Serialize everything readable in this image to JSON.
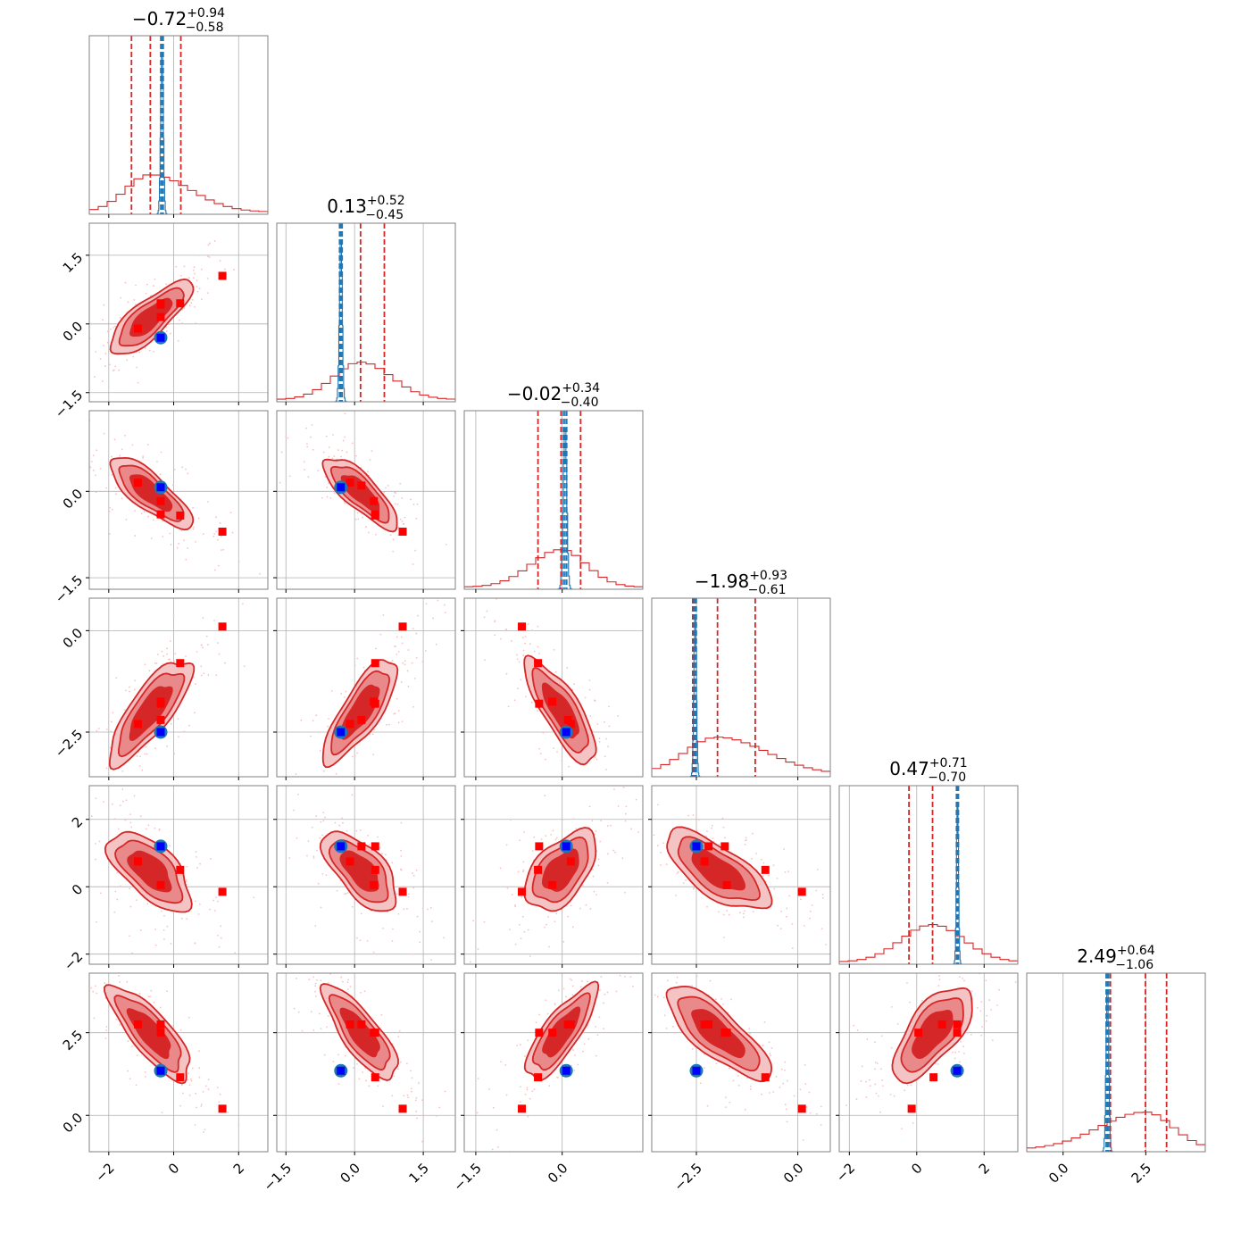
{
  "chart_data": {
    "type": "corner",
    "n_params": 6,
    "titles": [
      {
        "median": "−0.72",
        "plus": "+0.94",
        "minus": "−0.58"
      },
      {
        "median": "0.13",
        "plus": "+0.52",
        "minus": "−0.45"
      },
      {
        "median": "−0.02",
        "plus": "+0.34",
        "minus": "−0.40"
      },
      {
        "median": "−1.98",
        "plus": "+0.93",
        "minus": "−0.61"
      },
      {
        "median": "0.47",
        "plus": "+0.71",
        "minus": "−0.70"
      },
      {
        "median": "2.49",
        "plus": "+0.64",
        "minus": "−1.06"
      }
    ],
    "ranges": [
      [
        -2.6,
        2.9
      ],
      [
        -1.7,
        2.2
      ],
      [
        -1.7,
        1.4
      ],
      [
        -3.6,
        0.8
      ],
      [
        -2.3,
        3.0
      ],
      [
        -1.1,
        4.3
      ]
    ],
    "ticks": [
      {
        "values": [
          -2,
          0,
          2
        ],
        "labels": [
          "−2",
          "0",
          "2"
        ]
      },
      {
        "values": [
          -1.5,
          0.0,
          1.5
        ],
        "labels": [
          "−1.5",
          "0.0",
          "1.5"
        ]
      },
      {
        "values": [
          -1.5,
          0.0
        ],
        "labels": [
          "−1.5",
          "0.0"
        ]
      },
      {
        "values": [
          -2.5,
          0.0
        ],
        "labels": [
          "−2.5",
          "0.0"
        ]
      },
      {
        "values": [
          -2,
          0,
          2
        ],
        "labels": [
          "−2",
          "0",
          "2"
        ]
      },
      {
        "values": [
          0.0,
          2.5
        ],
        "labels": [
          "0.0",
          "2.5"
        ]
      }
    ],
    "red_quantiles": [
      [
        -1.3,
        -0.72,
        0.22
      ],
      [
        -0.32,
        0.13,
        0.65
      ],
      [
        -0.42,
        -0.02,
        0.32
      ],
      [
        -2.59,
        -1.98,
        -1.05
      ],
      [
        -0.23,
        0.47,
        1.18
      ],
      [
        1.43,
        2.49,
        3.13
      ]
    ],
    "blue_quantiles": [
      [
        -0.4,
        -0.36,
        -0.32
      ],
      [
        -0.33,
        -0.3,
        -0.27
      ],
      [
        0.02,
        0.05,
        0.08
      ],
      [
        -2.56,
        -2.53,
        -2.5
      ],
      [
        1.18,
        1.21,
        1.24
      ],
      [
        1.3,
        1.34,
        1.38
      ]
    ],
    "blue_point": [
      -0.4,
      -0.3,
      0.07,
      -2.5,
      1.2,
      1.35
    ],
    "red_points": [
      [
        -1.1,
        -0.1,
        0.15,
        -2.3,
        0.75,
        2.75
      ],
      [
        -0.4,
        0.42,
        -0.17,
        -1.75,
        0.05,
        2.5
      ],
      [
        0.2,
        0.45,
        -0.42,
        -0.8,
        0.5,
        1.15
      ],
      [
        1.5,
        1.05,
        -0.7,
        0.1,
        -0.15,
        0.2
      ],
      [
        -0.4,
        0.15,
        0.1,
        -2.2,
        1.2,
        2.75
      ],
      [
        -0.4,
        0.45,
        -0.4,
        -1.8,
        1.2,
        2.5
      ]
    ],
    "red_hist_shape": "broad",
    "blue_hist_shape": "narrow",
    "colors": {
      "red": "#d62728",
      "red_fill_dark": "#d62728",
      "red_fill_mid": "#e9898a",
      "red_fill_light": "#f4c3c3",
      "blue": "#1f77b4",
      "blue_marker": "#0000ff",
      "red_marker": "#ff0000",
      "grid": "#b0b0b0",
      "axis": "#808080"
    },
    "grid": true
  }
}
